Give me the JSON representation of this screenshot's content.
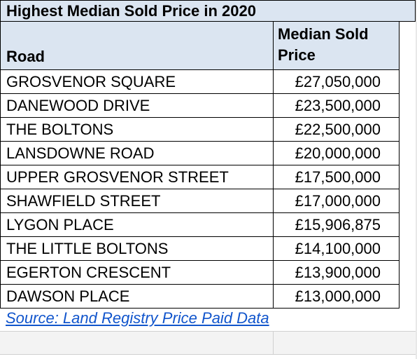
{
  "title": "Highest Median Sold Price in 2020",
  "headers": {
    "road": "Road",
    "price": "Median Sold Price"
  },
  "rows": [
    {
      "road": "GROSVENOR SQUARE",
      "price": "£27,050,000"
    },
    {
      "road": "DANEWOOD DRIVE",
      "price": "£23,500,000"
    },
    {
      "road": "THE BOLTONS",
      "price": "£22,500,000"
    },
    {
      "road": "LANSDOWNE ROAD",
      "price": "£20,000,000"
    },
    {
      "road": "UPPER GROSVENOR STREET",
      "price": "£17,500,000"
    },
    {
      "road": "SHAWFIELD STREET",
      "price": "£17,000,000"
    },
    {
      "road": "LYGON PLACE",
      "price": "£15,906,875"
    },
    {
      "road": "THE LITTLE BOLTONS",
      "price": "£14,100,000"
    },
    {
      "road": "EGERTON CRESCENT",
      "price": "£13,900,000"
    },
    {
      "road": "DAWSON PLACE",
      "price": "£13,000,000"
    }
  ],
  "source": "Source: Land Registry Price Paid Data",
  "colors": {
    "header_bg": "#dbe5f1",
    "link": "#1155cc"
  }
}
